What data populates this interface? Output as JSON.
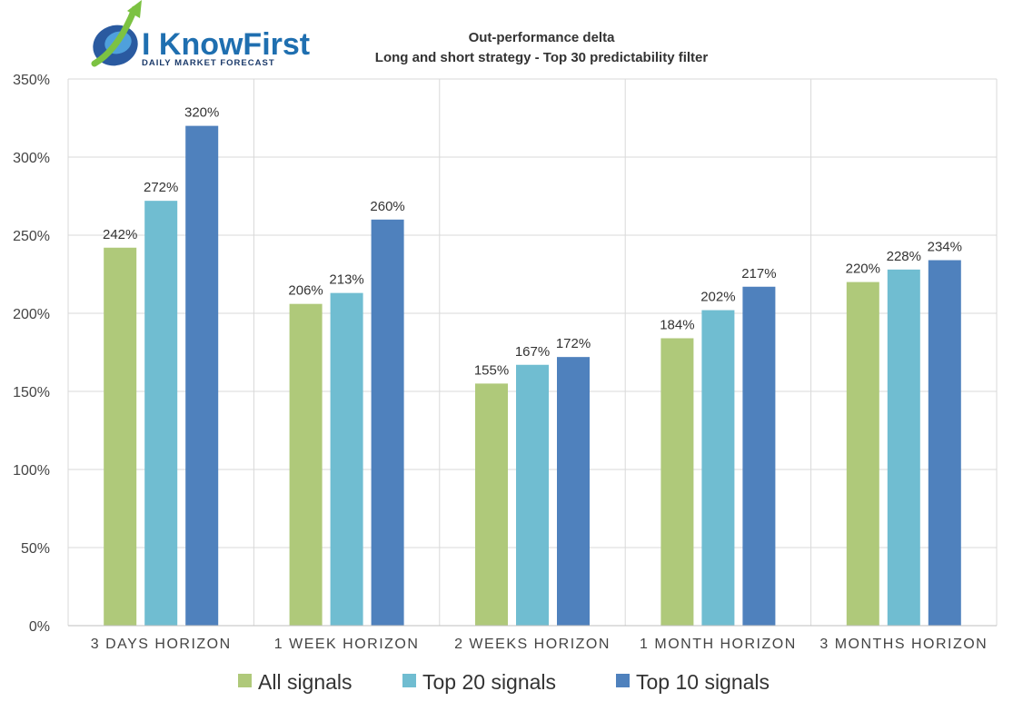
{
  "logo": {
    "name": "I KnowFirst",
    "tagline": "Daily Market Forecast"
  },
  "chart_data": {
    "type": "bar",
    "title": "Out-performance delta",
    "subtitle": "Long and short strategy - Top 30 predictability filter",
    "categories": [
      "3 DAYS HORIZON",
      "1 WEEK HORIZON",
      "2 WEEKS HORIZON",
      "1 MONTH HORIZON",
      "3 MONTHS HORIZON"
    ],
    "series": [
      {
        "name": "All signals",
        "color": "#afc97a",
        "values": [
          242,
          206,
          155,
          184,
          220
        ]
      },
      {
        "name": "Top 20 signals",
        "color": "#70bdd1",
        "values": [
          272,
          213,
          167,
          202,
          228
        ]
      },
      {
        "name": "Top 10 signals",
        "color": "#4f81bd",
        "values": [
          320,
          260,
          172,
          217,
          234
        ]
      }
    ],
    "value_suffix": "%",
    "ylim": [
      0,
      350
    ],
    "yticks": [
      "0%",
      "50%",
      "100%",
      "150%",
      "200%",
      "250%",
      "300%",
      "350%"
    ],
    "xlabel": "",
    "ylabel": "",
    "grid": true,
    "legend": "bottom"
  }
}
